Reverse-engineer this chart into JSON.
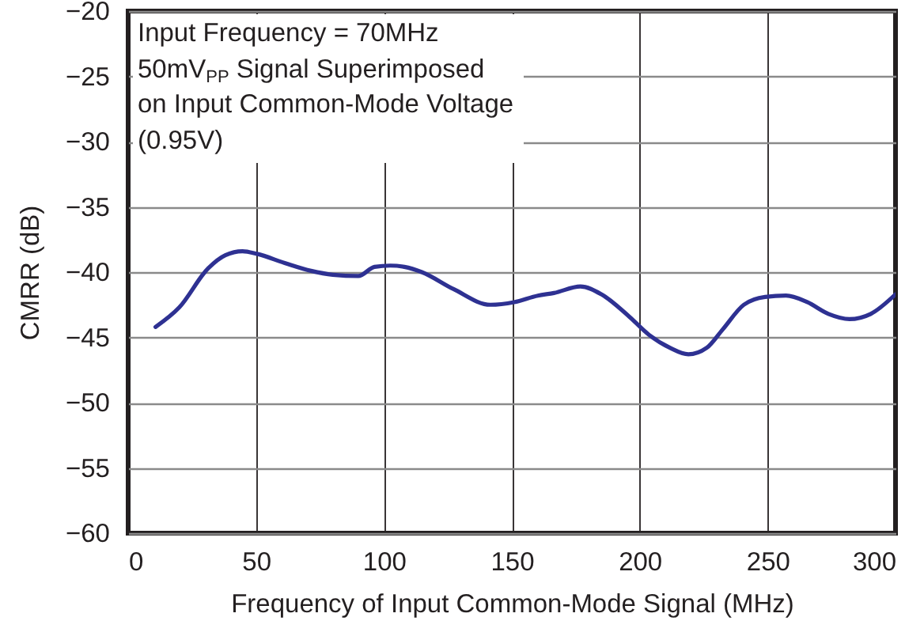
{
  "chart_data": {
    "type": "line",
    "xlabel": "Frequency of Input Common-Mode Signal (MHz)",
    "ylabel": "CMRR (dB)",
    "annotations": [
      "Input Frequency = 70MHz",
      "50mV$_{PP}$ Signal Superimposed",
      "on Input Common-Mode Voltage",
      "(0.95V)"
    ],
    "x": [
      10.7,
      20,
      31.3,
      38,
      44.7,
      50.3,
      61.2,
      71.5,
      80,
      90,
      96.3,
      102.5,
      108,
      114.8,
      127.2,
      141.6,
      150.9,
      160.2,
      166.5,
      176.8,
      185,
      195.3,
      203.6,
      211.8,
      219,
      226.2,
      232.4,
      240.7,
      249,
      257.2,
      265.5,
      273.8,
      282,
      290.3,
      300
    ],
    "series": [
      {
        "color": "#2e3192",
        "values": [
          -44.2,
          -42.7,
          -39.7,
          -38.7,
          -38.4,
          -38.6,
          -39.3,
          -39.9,
          -40.2,
          -40.3,
          -39.6,
          -39.5,
          -39.6,
          -40.0,
          -41.3,
          -42.5,
          -42.3,
          -41.8,
          -41.6,
          -41.1,
          -41.7,
          -43.3,
          -44.8,
          -45.8,
          -46.3,
          -45.8,
          -44.4,
          -42.5,
          -41.9,
          -41.8,
          -42.3,
          -43.2,
          -43.6,
          -43.2,
          -41.7
        ]
      }
    ],
    "xlim": [
      0,
      300
    ],
    "xticks": [
      0,
      50,
      100,
      150,
      200,
      250,
      300
    ],
    "ylim": [
      -60,
      -20
    ],
    "yticks": [
      -60,
      -55,
      -50,
      -45,
      -40,
      -35,
      -30,
      -25,
      -20
    ],
    "grid": true,
    "line_style": "solid"
  }
}
